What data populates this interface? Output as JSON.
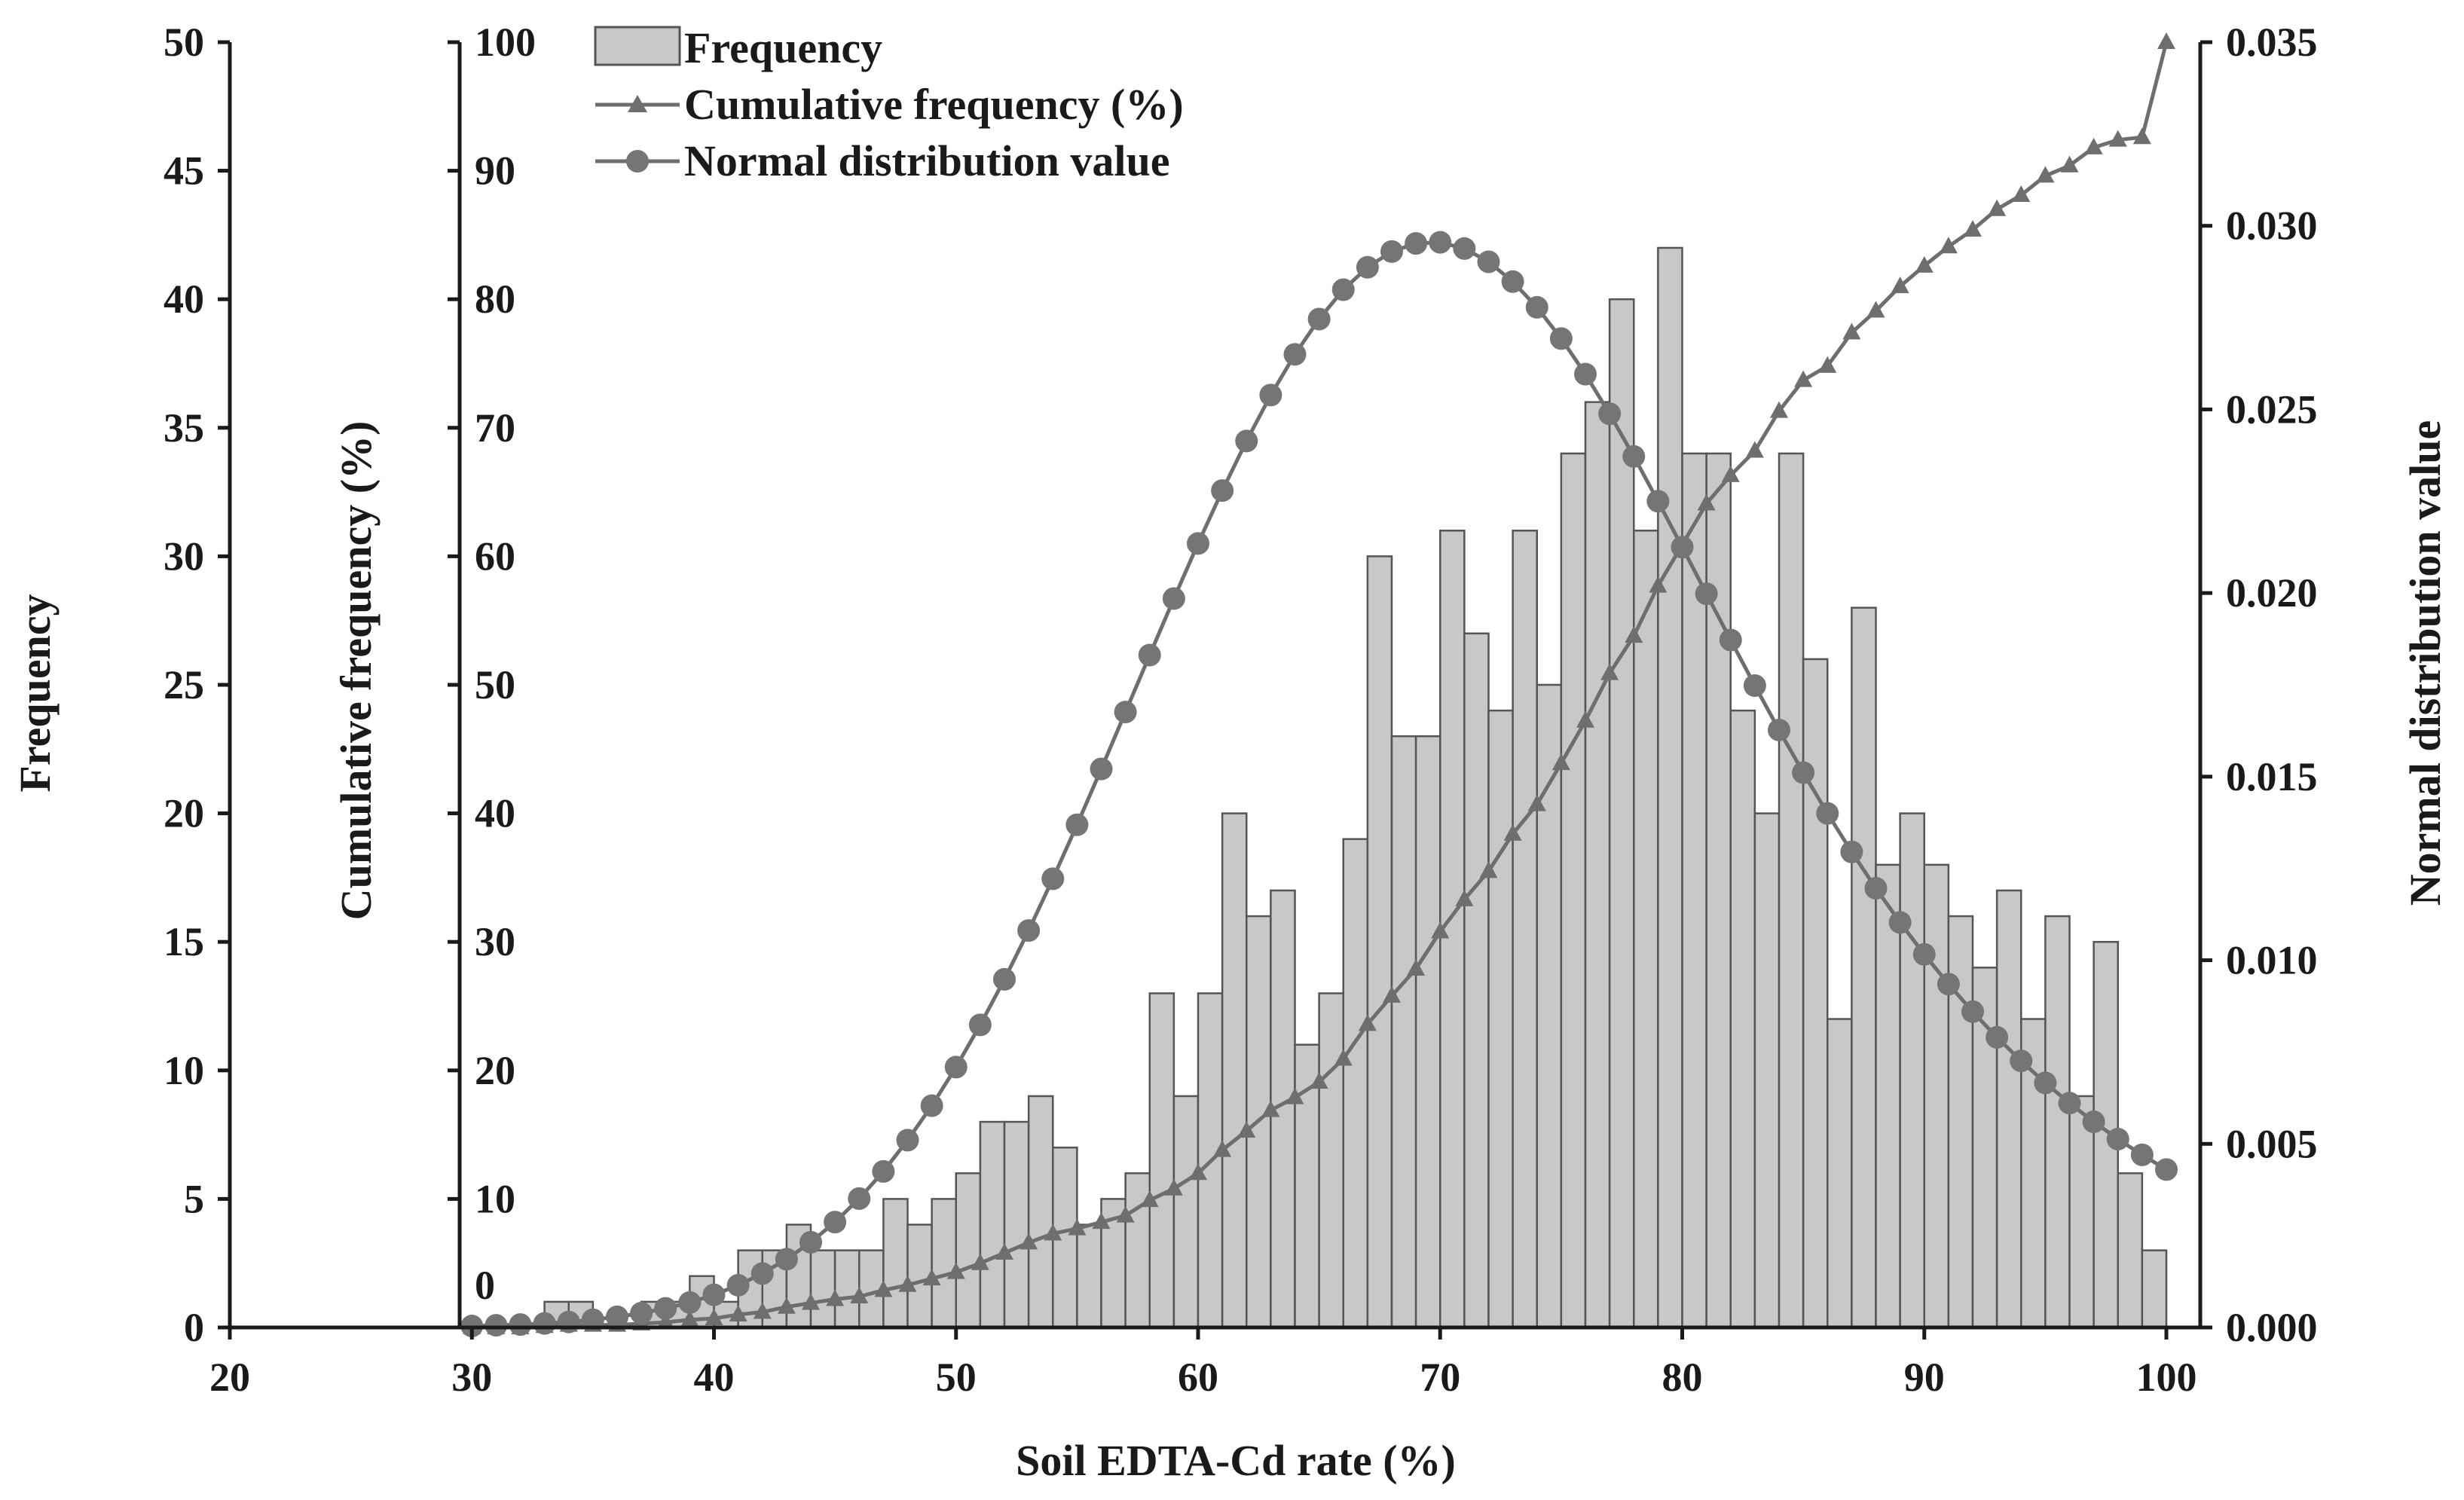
{
  "chart_data": {
    "type": "bar",
    "title": "",
    "xlabel": "Soil EDTA-Cd rate (%)",
    "xlim": [
      20,
      100
    ],
    "x_ticks": [
      20,
      30,
      40,
      50,
      60,
      70,
      80,
      90,
      100
    ],
    "axes": {
      "frequency": {
        "label": "Frequency",
        "lim": [
          0,
          50
        ],
        "ticks": [
          0,
          5,
          10,
          15,
          20,
          25,
          30,
          35,
          40,
          45,
          50
        ]
      },
      "cumulative": {
        "label": "Cumulative frequency (%)",
        "lim": [
          0,
          100
        ],
        "ticks": [
          0,
          10,
          20,
          30,
          40,
          50,
          60,
          70,
          80,
          90,
          100
        ]
      },
      "normal": {
        "label": "Normal distribution value",
        "lim": [
          0,
          0.035
        ],
        "ticks": [
          "0.000",
          "0.005",
          "0.010",
          "0.015",
          "0.020",
          "0.025",
          "0.030",
          "0.035"
        ]
      }
    },
    "legend_position": "top-left",
    "series": [
      {
        "name": "Frequency",
        "type": "bar",
        "axis": "frequency",
        "x": [
          30,
          31,
          32,
          33,
          34,
          35,
          36,
          37,
          38,
          39,
          40,
          41,
          42,
          43,
          44,
          45,
          46,
          47,
          48,
          49,
          50,
          51,
          52,
          53,
          54,
          55,
          56,
          57,
          58,
          59,
          60,
          61,
          62,
          63,
          64,
          65,
          66,
          67,
          68,
          69,
          70,
          71,
          72,
          73,
          74,
          75,
          76,
          77,
          78,
          79,
          80,
          81,
          82,
          83,
          84,
          85,
          86,
          87,
          88,
          89,
          90,
          91,
          92,
          93,
          94,
          95,
          96,
          97,
          98,
          99
        ],
        "values": [
          0,
          0,
          0,
          1,
          1,
          0,
          0,
          1,
          1,
          2,
          1,
          3,
          3,
          4,
          3,
          3,
          3,
          5,
          4,
          5,
          6,
          8,
          8,
          9,
          7,
          4,
          5,
          6,
          13,
          9,
          13,
          20,
          16,
          17,
          11,
          13,
          19,
          30,
          23,
          23,
          31,
          27,
          24,
          31,
          25,
          34,
          36,
          40,
          31,
          42,
          34,
          34,
          24,
          20,
          34,
          26,
          12,
          28,
          18,
          20,
          18,
          16,
          14,
          17,
          12,
          16,
          9,
          15,
          6,
          3
        ]
      },
      {
        "name": "Cumulative frequency (%)",
        "type": "line",
        "marker": "triangle",
        "axis": "cumulative",
        "x": [
          30,
          31,
          32,
          33,
          34,
          35,
          36,
          37,
          38,
          39,
          40,
          41,
          42,
          43,
          44,
          45,
          46,
          47,
          48,
          49,
          50,
          51,
          52,
          53,
          54,
          55,
          56,
          57,
          58,
          59,
          60,
          61,
          62,
          63,
          64,
          65,
          66,
          67,
          68,
          69,
          70,
          71,
          72,
          73,
          74,
          75,
          76,
          77,
          78,
          79,
          80,
          81,
          82,
          83,
          84,
          85,
          86,
          87,
          88,
          89,
          90,
          91,
          92,
          93,
          94,
          95,
          96,
          97,
          98,
          99,
          100
        ],
        "values": [
          0,
          0,
          0,
          0.1,
          0.2,
          0.2,
          0.2,
          0.3,
          0.4,
          0.6,
          0.7,
          1.0,
          1.2,
          1.6,
          1.9,
          2.2,
          2.4,
          2.9,
          3.3,
          3.8,
          4.3,
          5.0,
          5.8,
          6.6,
          7.3,
          7.7,
          8.2,
          8.7,
          9.9,
          10.8,
          12.0,
          13.8,
          15.3,
          16.9,
          17.9,
          19.1,
          20.9,
          23.6,
          25.8,
          27.9,
          30.8,
          33.3,
          35.5,
          38.4,
          40.7,
          43.9,
          47.2,
          50.9,
          53.8,
          57.7,
          60.9,
          64.1,
          66.3,
          68.2,
          71.3,
          73.7,
          74.8,
          77.4,
          79.1,
          81.0,
          82.6,
          84.1,
          85.4,
          87.0,
          88.1,
          89.6,
          90.4,
          91.8,
          92.4,
          92.6,
          100
        ]
      },
      {
        "name": "Normal distribution value",
        "type": "line",
        "marker": "circle",
        "axis": "normal",
        "x": [
          30,
          31,
          32,
          33,
          34,
          35,
          36,
          37,
          38,
          39,
          40,
          41,
          42,
          43,
          44,
          45,
          46,
          47,
          48,
          49,
          50,
          51,
          52,
          53,
          54,
          55,
          56,
          57,
          58,
          59,
          60,
          61,
          62,
          63,
          64,
          65,
          66,
          67,
          68,
          69,
          70,
          71,
          72,
          73,
          74,
          75,
          76,
          77,
          78,
          79,
          80,
          81,
          82,
          83,
          84,
          85,
          86,
          87,
          88,
          89,
          90,
          91,
          92,
          93,
          94,
          95,
          96,
          97,
          98,
          99,
          100
        ],
        "values": [
          4e-05,
          6e-05,
          8e-05,
          0.00011,
          0.00015,
          0.00021,
          0.00029,
          0.00039,
          0.00052,
          0.00068,
          0.00089,
          0.00115,
          0.00147,
          0.00186,
          0.00232,
          0.00287,
          0.00351,
          0.00425,
          0.0051,
          0.00604,
          0.00709,
          0.00824,
          0.00948,
          0.01081,
          0.01222,
          0.01369,
          0.01521,
          0.01676,
          0.01831,
          0.01985,
          0.02135,
          0.02279,
          0.02414,
          0.02539,
          0.0265,
          0.02746,
          0.02826,
          0.02887,
          0.0293,
          0.02952,
          0.02955,
          0.02938,
          0.02902,
          0.02848,
          0.02778,
          0.02693,
          0.02596,
          0.02488,
          0.02372,
          0.0225,
          0.02125,
          0.01998,
          0.01872,
          0.01748,
          0.01627,
          0.01511,
          0.014,
          0.01295,
          0.01196,
          0.01103,
          0.01016,
          0.00935,
          0.0086,
          0.0079,
          0.00726,
          0.00666,
          0.00611,
          0.0056,
          0.00513,
          0.0047,
          0.0043
        ]
      }
    ]
  }
}
